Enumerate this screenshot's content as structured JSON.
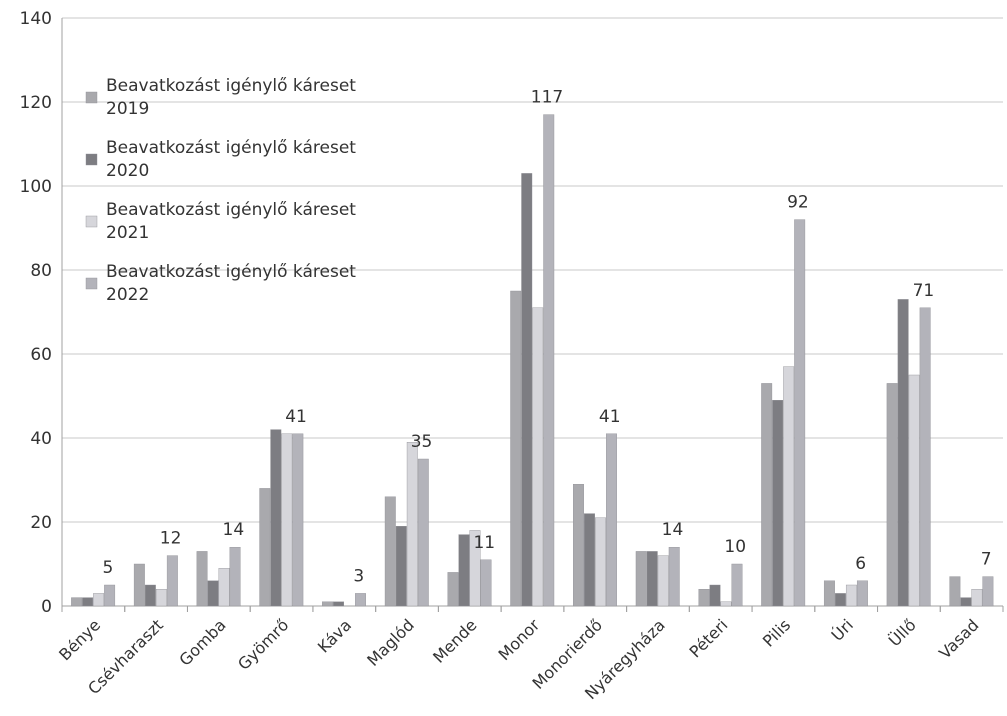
{
  "chart_data": {
    "type": "bar",
    "title": "",
    "xlabel": "",
    "ylabel": "",
    "ylim": [
      0,
      140
    ],
    "yticks": [
      0,
      20,
      40,
      60,
      80,
      100,
      120,
      140
    ],
    "grid": true,
    "legend_position": "top-left",
    "categories": [
      "Bénye",
      "Csévharaszt",
      "Gomba",
      "Gyömrő",
      "Káva",
      "Maglód",
      "Mende",
      "Monor",
      "Monorierdő",
      "Nyáregyháza",
      "Péteri",
      "Pilis",
      "Úri",
      "Üllő",
      "Vasad"
    ],
    "series": [
      {
        "name": [
          "Beavatkozást igénylő káreset",
          "2019"
        ],
        "color": "#a9a9ad",
        "values": [
          2,
          10,
          13,
          28,
          1,
          26,
          8,
          75,
          29,
          13,
          4,
          53,
          6,
          53,
          7
        ]
      },
      {
        "name": [
          "Beavatkozást igénylő káreset",
          "2020"
        ],
        "color": "#7d7d82",
        "values": [
          2,
          5,
          6,
          42,
          1,
          19,
          17,
          103,
          22,
          13,
          5,
          49,
          3,
          73,
          2
        ]
      },
      {
        "name": [
          "Beavatkozást igénylő káreset",
          "2021"
        ],
        "color": "#d6d6db",
        "values": [
          3,
          4,
          9,
          41,
          0,
          39,
          18,
          71,
          21,
          12,
          1,
          57,
          5,
          55,
          4
        ]
      },
      {
        "name": [
          "Beavatkozást igénylő káreset",
          "2022"
        ],
        "color": "#b3b3ba",
        "values": [
          5,
          12,
          14,
          41,
          3,
          35,
          11,
          117,
          41,
          14,
          10,
          92,
          6,
          71,
          7
        ]
      }
    ],
    "data_labels": [
      "5",
      "12",
      "14",
      "41",
      "3",
      "35",
      "11",
      "117",
      "41",
      "14",
      "10",
      "92",
      "6",
      "71",
      "7"
    ]
  }
}
